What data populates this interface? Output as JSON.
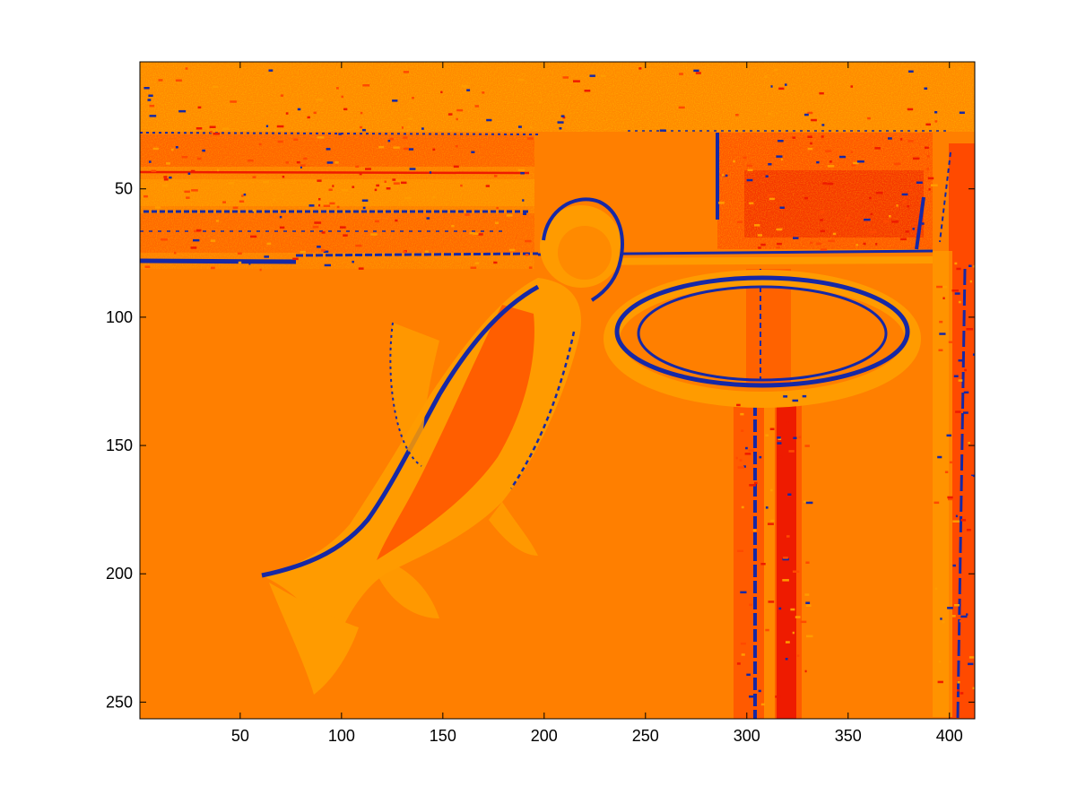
{
  "figure": {
    "background": "#ffffff"
  },
  "image_plot": {
    "colors": {
      "base": "#ff7f00",
      "light": "#ff9b00",
      "red": "#ff4a00",
      "deep_red": "#ee1b00",
      "blue": "#1628a6"
    },
    "x_axis": {
      "range": [
        1,
        412
      ],
      "ticks": [
        "50",
        "100",
        "150",
        "200",
        "250",
        "300",
        "350",
        "400"
      ],
      "tick_values": [
        50,
        100,
        150,
        200,
        250,
        300,
        350,
        400
      ]
    },
    "y_axis": {
      "range": [
        1,
        256
      ],
      "direction": "reverse",
      "ticks": [
        "50",
        "100",
        "150",
        "200",
        "250"
      ],
      "tick_values": [
        50,
        100,
        150,
        200,
        250
      ]
    },
    "grid": false
  }
}
